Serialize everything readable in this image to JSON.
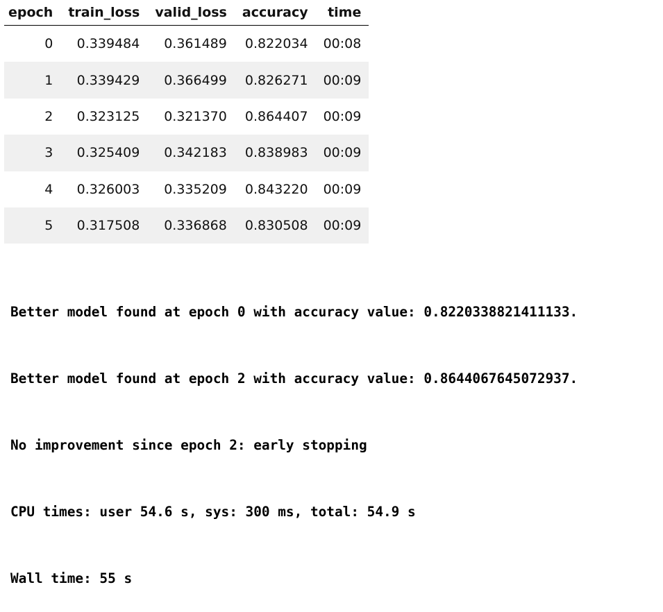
{
  "table": {
    "headers": [
      "epoch",
      "train_loss",
      "valid_loss",
      "accuracy",
      "time"
    ],
    "rows": [
      [
        "0",
        "0.339484",
        "0.361489",
        "0.822034",
        "00:08"
      ],
      [
        "1",
        "0.339429",
        "0.366499",
        "0.826271",
        "00:09"
      ],
      [
        "2",
        "0.323125",
        "0.321370",
        "0.864407",
        "00:09"
      ],
      [
        "3",
        "0.325409",
        "0.342183",
        "0.838983",
        "00:09"
      ],
      [
        "4",
        "0.326003",
        "0.335209",
        "0.843220",
        "00:09"
      ],
      [
        "5",
        "0.317508",
        "0.336868",
        "0.830508",
        "00:09"
      ]
    ]
  },
  "output": {
    "lines": [
      "Better model found at epoch 0 with accuracy value: 0.8220338821411133.",
      "Better model found at epoch 2 with accuracy value: 0.8644067645072937.",
      "No improvement since epoch 2: early stopping",
      "CPU times: user 54.6 s, sys: 300 ms, total: 54.9 s",
      "Wall time: 55 s"
    ]
  },
  "colors": {
    "stripe": "#f0f0f0",
    "text": "#000000",
    "spellcheck": "#e0443c"
  }
}
